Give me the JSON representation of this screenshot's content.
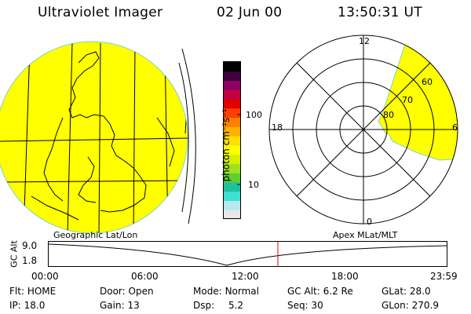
{
  "header": {
    "title": "Ultraviolet Imager",
    "date": "02 Jun 00",
    "time": "13:50:31 UT"
  },
  "colorbar": {
    "unit_label": "photon cm⁻²s⁻¹",
    "tick_100": "100",
    "tick_10": "10",
    "colors": [
      "#e8e8e8",
      "#b8e8f0",
      "#40e0d0",
      "#20c0a0",
      "#60d030",
      "#a0e020",
      "#d8f000",
      "#ffff00",
      "#ffe000",
      "#ffb000",
      "#ff8000",
      "#ff4000",
      "#e00000",
      "#c00040",
      "#900060",
      "#400040",
      "#000000"
    ]
  },
  "polar": {
    "label_12": "12",
    "label_18": "18",
    "label_6": "6",
    "label_0": "0",
    "lat_60": "60",
    "lat_70": "70",
    "lat_80": "80",
    "fill_color": "#ffff00"
  },
  "globe": {
    "fill_color": "#ffff00"
  },
  "timeline": {
    "left_label": "Geographic Lat/Lon",
    "right_label": "Apex MLat/MLT",
    "ylabel": "GC Alt",
    "y_top": "9.0",
    "y_bottom": "1.8",
    "x_ticks": [
      "00:00",
      "06:00",
      "12:00",
      "18:00",
      "23:59"
    ],
    "marker_color": "#e00000"
  },
  "status": {
    "flt_label": "Flt:",
    "flt_value": "HOME",
    "ip_label": "IP:",
    "ip_value": "18.0",
    "door_label": "Door:",
    "door_value": "Open",
    "gain_label": "Gain:",
    "gain_value": "13",
    "mode_label": "Mode:",
    "mode_value": "Normal",
    "dsp_label": "Dsp:",
    "dsp_value": "5.2",
    "gcalt_label": "GC Alt:",
    "gcalt_value": "6.2 Re",
    "seq_label": "Seq:",
    "seq_value": "30",
    "glat_label": "GLat:",
    "glat_value": "28.0",
    "glon_label": "GLon:",
    "glon_value": "270.9"
  }
}
